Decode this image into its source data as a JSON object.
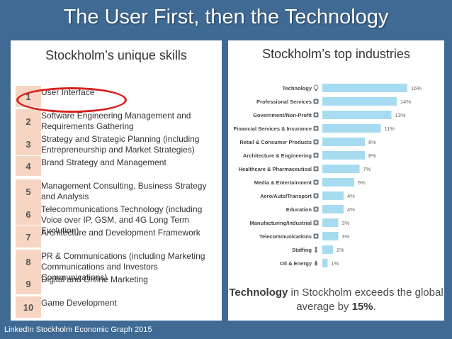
{
  "slide": {
    "title": "The User First, then the Technology",
    "source": "LinkedIn Stockholm Economic Graph 2015"
  },
  "skills_panel": {
    "heading": "Stockholm’s unique skills",
    "items": [
      {
        "num": "1",
        "text": "User Interface"
      },
      {
        "num": "2",
        "text": "Software Engineering Management and Requirements Gathering"
      },
      {
        "num": "3",
        "text": "Strategy and Strategic Planning (including Entrepreneurship and Market Strategies)"
      },
      {
        "num": "4",
        "text": "Brand Strategy and Management"
      },
      {
        "num": "5",
        "text": "Management Consulting, Business Strategy and Analysis"
      },
      {
        "num": "6",
        "text": "Telecommunications Technology (including Voice over IP, GSM, and 4G Long Term Evolution)"
      },
      {
        "num": "7",
        "text": "Architecture and Development Framework"
      },
      {
        "num": "8",
        "text": "PR & Communications (including Marketing Communications and Investors Communications)"
      },
      {
        "num": "9",
        "text": "Digital and Online Marketing"
      },
      {
        "num": "10",
        "text": "Game Development"
      }
    ],
    "highlight_color": "#d8211c",
    "number_bg_color": "#f6d6c3"
  },
  "industries_panel": {
    "heading": "Stockholm’s top industries",
    "summary_bold_1": "Technology",
    "summary_mid": " in Stockholm exceeds the global average by ",
    "summary_bold_2": "15%",
    "summary_end": "."
  },
  "chart_data": {
    "type": "bar",
    "orientation": "horizontal",
    "title": "Stockholm’s top industries",
    "categories": [
      "Technology",
      "Professional Services",
      "Government/Non-Profit",
      "Financial Services & Insurance",
      "Retail & Consumer Products",
      "Architecture & Engineering",
      "Healthcare & Pharmaceutical",
      "Media & Entertainment",
      "Aero/Auto/Transport",
      "Education",
      "Manufacturing/Industrial",
      "Telecommunications",
      "Staffing",
      "Oil & Energy"
    ],
    "values": [
      16,
      14,
      13,
      11,
      8,
      8,
      7,
      6,
      4,
      4,
      3,
      3,
      2,
      1
    ],
    "value_labels": [
      "16%",
      "14%",
      "13%",
      "11%",
      "8%",
      "8%",
      "7%",
      "6%",
      "4%",
      "4%",
      "3%",
      "3%",
      "2%",
      "1%"
    ],
    "icons": [
      "lightbulb-icon",
      "briefcase-icon",
      "building-icon",
      "piggy-bank-icon",
      "cart-icon",
      "tools-icon",
      "medical-kit-icon",
      "film-icon",
      "plane-icon",
      "pencil-icon",
      "factory-icon",
      "phone-icon",
      "person-icon",
      "droplet-icon"
    ],
    "xlim": [
      0,
      16
    ],
    "grid": false,
    "legend": "none",
    "bar_color": "#a7dcf0"
  }
}
